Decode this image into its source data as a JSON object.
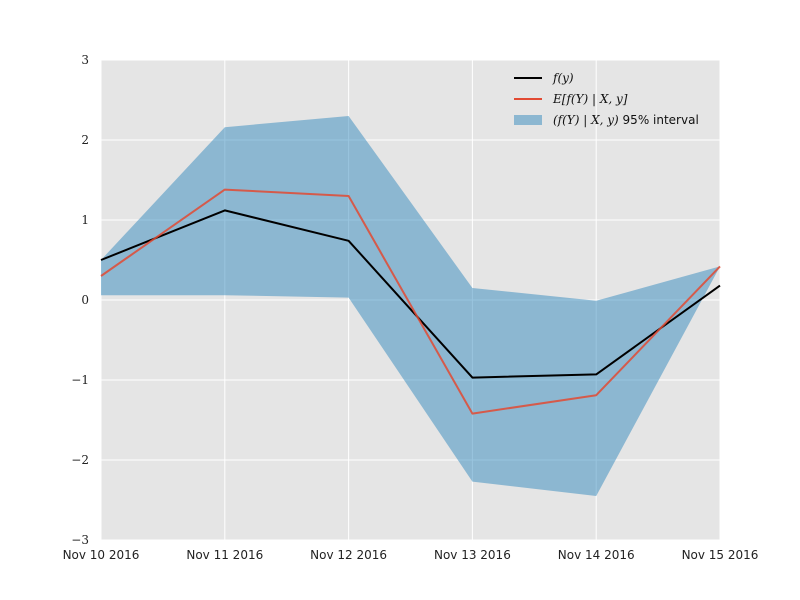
{
  "chart_data": {
    "type": "line",
    "x": [
      "Nov 10 2016",
      "Nov 11 2016",
      "Nov 12 2016",
      "Nov 13 2016",
      "Nov 14 2016",
      "Nov 15 2016"
    ],
    "ylim": [
      -3,
      3
    ],
    "yticks": [
      -3,
      -2,
      -1,
      0,
      1,
      2,
      3
    ],
    "ytick_labels": [
      "−3",
      "−2",
      "−1",
      "0",
      "1",
      "2",
      "3"
    ],
    "grid": true,
    "legend_position": "top-right",
    "series": [
      {
        "name": "f(y)",
        "kind": "line",
        "color": "#000000",
        "values": [
          0.5,
          1.12,
          0.74,
          -0.97,
          -0.93,
          0.18
        ]
      },
      {
        "name": "E[f(Y) | X, y]",
        "kind": "line",
        "color": "#e24a33",
        "values": [
          0.3,
          1.38,
          1.3,
          -1.42,
          -1.19,
          0.42
        ]
      },
      {
        "name": "(f(Y) | X, y) 95% interval",
        "kind": "band",
        "color": "#348abd",
        "upper": [
          0.5,
          2.16,
          2.3,
          0.15,
          -0.01,
          0.42
        ],
        "lower": [
          0.06,
          0.06,
          0.03,
          -2.27,
          -2.45,
          0.42
        ]
      }
    ],
    "legend": {
      "line1": "f(y)",
      "line2": "E[f(Y) | X, y]",
      "band_math": "(f(Y) | X, y)",
      "band_suffix": " 95% interval"
    }
  }
}
